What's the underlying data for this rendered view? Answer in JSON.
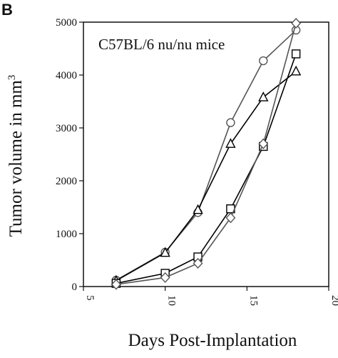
{
  "panel_label": "B",
  "chart_data": {
    "type": "line",
    "title": "",
    "annotation": "C57BL/6 nu/nu mice",
    "xlabel": "Days Post-Implantation",
    "ylabel_main": "Tumor volume in mm",
    "ylabel_superscript": "3",
    "xlim": [
      5,
      20
    ],
    "ylim": [
      0,
      5000
    ],
    "xticks": [
      5,
      10,
      15,
      20
    ],
    "yticks": [
      0,
      1000,
      2000,
      3000,
      4000,
      5000
    ],
    "grid": false,
    "legend": "none",
    "series": [
      {
        "marker": "circle",
        "color": "#555555",
        "x": [
          7,
          10,
          12,
          14,
          16,
          18
        ],
        "y": [
          120,
          650,
          1400,
          3100,
          4270,
          4850
        ]
      },
      {
        "marker": "triangle",
        "color": "#000000",
        "x": [
          7,
          10,
          12,
          14,
          16,
          18
        ],
        "y": [
          110,
          640,
          1450,
          2700,
          3580,
          4070
        ]
      },
      {
        "marker": "square",
        "color": "#000000",
        "x": [
          7,
          10,
          12,
          14,
          16,
          18
        ],
        "y": [
          60,
          250,
          560,
          1470,
          2650,
          4400
        ]
      },
      {
        "marker": "diamond",
        "color": "#555555",
        "x": [
          7,
          10,
          12,
          14,
          16,
          18
        ],
        "y": [
          40,
          170,
          440,
          1300,
          2700,
          4980
        ]
      }
    ]
  }
}
